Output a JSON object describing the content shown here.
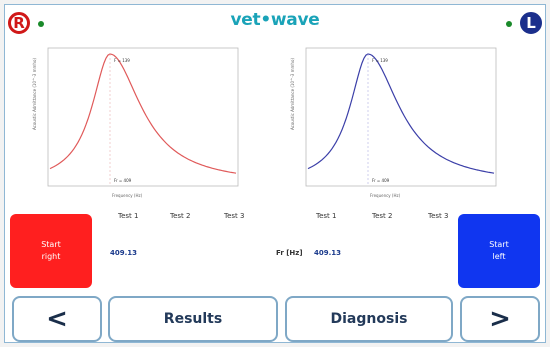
{
  "header": {
    "logo_text": "vet•wave",
    "right_badge": "R",
    "left_badge": "L"
  },
  "plots": [
    {
      "side": "right",
      "color": "#e05a5a",
      "xlabel": "Frequency (Hz)",
      "ylabel": "Acoustic Admittance (10^-3 mmho)",
      "peak_label": "F = 139",
      "fr_label": "Fr = 409"
    },
    {
      "side": "left",
      "color": "#3b3fa8",
      "xlabel": "Frequency (Hz)",
      "ylabel": "Acoustic Admittance (10^-3 mmho)",
      "peak_label": "F = 139",
      "fr_label": "Fr = 409"
    }
  ],
  "tests_right": [
    "Test 1",
    "Test 2",
    "Test 3"
  ],
  "tests_left": [
    "Test 1",
    "Test 2",
    "Test 3"
  ],
  "fr_label": "Fr [Hz]",
  "right_value": "409.13",
  "left_value": "409.13",
  "buttons": {
    "start_right_line1": "Start",
    "start_right_line2": "right",
    "start_left_line1": "Start",
    "start_left_line2": "left",
    "prev": "<",
    "results": "Results",
    "diagnosis": "Diagnosis",
    "next": ">"
  },
  "colors": {
    "red": "#ff1f1f",
    "blue": "#1036f0",
    "accent": "#1aa3b8"
  }
}
